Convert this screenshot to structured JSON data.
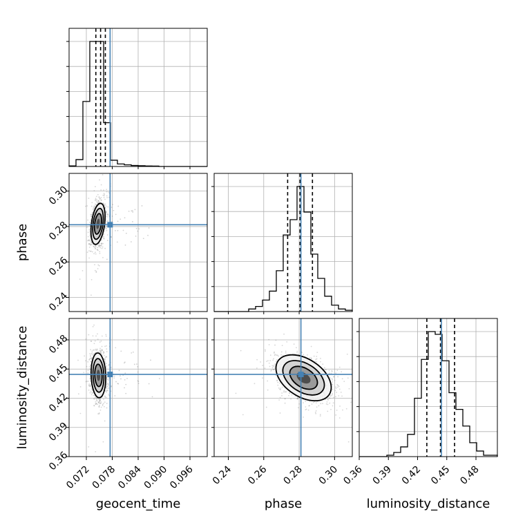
{
  "chart_data": {
    "type": "corner",
    "grid": true,
    "colors": {
      "truth": "#4682b4",
      "line": "#000000",
      "density": "#000000",
      "grid": "#b0b0b0"
    },
    "parameters": [
      {
        "name": "geocent_time",
        "label": "geocent_time",
        "range": [
          0.068,
          0.1
        ],
        "ticks": [
          0.072,
          0.078,
          0.084,
          0.09,
          0.096
        ],
        "tick_labels": [
          "0.072",
          "0.078",
          "0.084",
          "0.090",
          "0.096"
        ],
        "truth": 0.0775,
        "quantiles": [
          0.0742,
          0.0753,
          0.0764
        ]
      },
      {
        "name": "phase",
        "label": "phase",
        "range": [
          0.232,
          0.31
        ],
        "ticks": [
          0.24,
          0.26,
          0.28,
          0.3
        ],
        "tick_labels": [
          "0.24",
          "0.26",
          "0.28",
          "0.30"
        ],
        "truth": 0.281,
        "quantiles": [
          0.2735,
          0.2805,
          0.2875
        ]
      },
      {
        "name": "luminosity_distance",
        "label": "luminosity_distance",
        "range": [
          0.36,
          0.502
        ],
        "ticks": [
          0.36,
          0.39,
          0.42,
          0.45,
          0.48
        ],
        "tick_labels": [
          "0.36",
          "0.39",
          "0.42",
          "0.45",
          "0.48"
        ],
        "truth": 0.4445,
        "quantiles": [
          0.4295,
          0.4435,
          0.458
        ]
      }
    ],
    "histograms": {
      "geocent_time": {
        "bin_edges": [
          0.068,
          0.0696,
          0.0712,
          0.0728,
          0.0744,
          0.076,
          0.0776,
          0.0792,
          0.0808,
          0.0824,
          0.084,
          0.0856,
          0.0872,
          0.0888,
          0.0904,
          0.092,
          0.0936,
          0.0952,
          0.0968,
          0.0984,
          0.1
        ],
        "counts": [
          0.5,
          5.5,
          52,
          100,
          100,
          35,
          5,
          2,
          1.3,
          0.8,
          0.6,
          0.4,
          0.3,
          0,
          0,
          0,
          0,
          0,
          0,
          0
        ]
      },
      "phase": {
        "bin_edges": [
          0.232,
          0.2359,
          0.2398,
          0.2437,
          0.2476,
          0.2515,
          0.2554,
          0.2593,
          0.2632,
          0.2671,
          0.271,
          0.2749,
          0.2788,
          0.2827,
          0.2866,
          0.2905,
          0.2944,
          0.2983,
          0.3022,
          0.3061,
          0.31
        ],
        "counts": [
          0,
          0,
          0,
          0,
          0,
          2,
          4,
          9,
          16,
          32,
          60,
          72,
          98,
          78,
          45,
          26,
          12,
          5,
          2,
          1
        ]
      },
      "luminosity_distance": {
        "bin_edges": [
          0.36,
          0.3671,
          0.3742,
          0.3813,
          0.3884,
          0.3955,
          0.4026,
          0.4097,
          0.4168,
          0.4239,
          0.431,
          0.4381,
          0.4452,
          0.4523,
          0.4594,
          0.4665,
          0.4736,
          0.4807,
          0.4878,
          0.4949,
          0.502
        ],
        "counts": [
          0,
          0,
          0,
          0,
          1,
          3,
          7,
          16,
          42,
          70,
          90,
          88,
          69,
          46,
          34,
          22,
          10,
          4,
          1,
          1
        ]
      }
    },
    "joint_2d": [
      {
        "x": "geocent_time",
        "y": "phase",
        "center": [
          0.0747,
          0.2815
        ],
        "sigma": [
          0.00082,
          0.0058
        ],
        "corr": 0.35
      },
      {
        "x": "geocent_time",
        "y": "luminosity_distance",
        "center": [
          0.0748,
          0.4435
        ],
        "sigma": [
          0.00085,
          0.0115
        ],
        "corr": -0.1
      },
      {
        "x": "phase",
        "y": "luminosity_distance",
        "center": [
          0.2825,
          0.441
        ],
        "sigma": [
          0.0078,
          0.0118
        ],
        "corr": -0.42
      }
    ]
  }
}
